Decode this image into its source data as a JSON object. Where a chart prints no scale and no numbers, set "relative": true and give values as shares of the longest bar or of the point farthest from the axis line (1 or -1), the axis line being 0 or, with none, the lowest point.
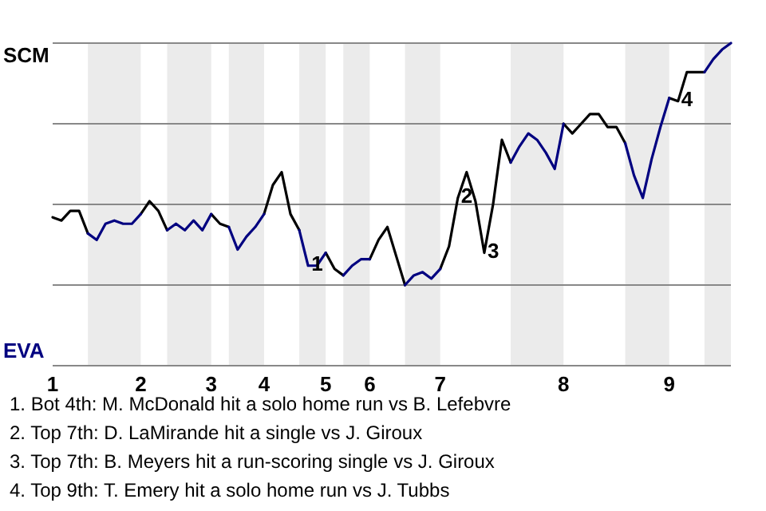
{
  "chart_data": {
    "type": "line",
    "categories": [
      "1",
      null,
      null,
      null,
      null,
      null,
      null,
      null,
      null,
      null,
      "2",
      null,
      null,
      null,
      null,
      null,
      null,
      null,
      "3",
      null,
      null,
      null,
      null,
      null,
      "4",
      null,
      null,
      null,
      null,
      null,
      null,
      "5",
      null,
      null,
      null,
      null,
      "6",
      null,
      null,
      null,
      null,
      null,
      null,
      null,
      "7",
      null,
      null,
      null,
      null,
      null,
      null,
      null,
      null,
      null,
      null,
      null,
      null,
      null,
      "8",
      null,
      null,
      null,
      null,
      null,
      null,
      null,
      null,
      null,
      null,
      null,
      "9",
      null,
      null,
      null,
      null,
      null,
      null,
      null
    ],
    "relative": true,
    "series": [
      {
        "color": "#000000",
        "values": [
          0.46,
          0.45,
          0.48,
          0.48,
          0.41,
          null,
          null,
          null,
          null,
          null,
          0.47,
          0.51,
          0.48,
          0.42,
          null,
          null,
          null,
          null,
          0.47,
          0.44,
          0.43,
          null,
          null,
          null,
          0.47,
          0.56,
          0.6,
          0.47,
          0.42,
          null,
          null,
          0.35,
          0.3,
          0.28,
          null,
          null,
          0.33,
          0.39,
          0.43,
          0.34,
          0.25,
          null,
          null,
          null,
          0.3,
          0.37,
          0.52,
          0.6,
          0.51,
          0.35,
          0.5,
          0.7,
          0.63,
          null,
          null,
          null,
          null,
          null,
          0.75,
          0.72,
          0.75,
          0.78,
          0.78,
          0.74,
          0.74,
          0.69,
          null,
          null,
          null,
          null,
          0.83,
          0.82,
          0.91,
          0.91,
          0.91,
          null,
          null,
          null
        ]
      },
      {
        "color": "#000080",
        "values": [
          null,
          null,
          null,
          null,
          0.41,
          0.39,
          0.44,
          0.45,
          0.44,
          0.44,
          0.47,
          null,
          null,
          0.42,
          0.44,
          0.42,
          0.45,
          0.42,
          0.47,
          null,
          0.43,
          0.36,
          0.4,
          0.43,
          0.47,
          null,
          null,
          null,
          0.42,
          0.31,
          0.31,
          0.35,
          null,
          0.28,
          0.31,
          0.33,
          0.33,
          null,
          null,
          null,
          0.25,
          0.28,
          0.29,
          0.27,
          0.3,
          null,
          null,
          null,
          null,
          null,
          null,
          null,
          0.63,
          0.68,
          0.72,
          0.7,
          0.66,
          0.61,
          0.75,
          null,
          null,
          null,
          null,
          null,
          null,
          0.69,
          0.59,
          0.52,
          0.64,
          0.74,
          0.83,
          null,
          null,
          null,
          0.91,
          0.95,
          0.98,
          1.0
        ]
      }
    ],
    "grid": "y",
    "annotations": [
      "SCM",
      "EVA",
      {
        "text": "1",
        "y": 0.31
      },
      {
        "text": "2",
        "y": 0.52
      },
      {
        "text": "3",
        "y": 0.35
      },
      {
        "text": "4",
        "y": 0.82
      },
      "1. Bot 4th: M. McDonald hit a solo home run vs B. Lefebvre",
      "2. Top 7th: D. LaMirande hit a single vs J. Giroux",
      "3. Top 7th: B. Meyers hit a run-scoring single vs J. Giroux",
      "4. Top 9th: T. Emery hit a solo home run vs J. Tubbs"
    ],
    "marker": "none",
    "line_style": "solid"
  }
}
